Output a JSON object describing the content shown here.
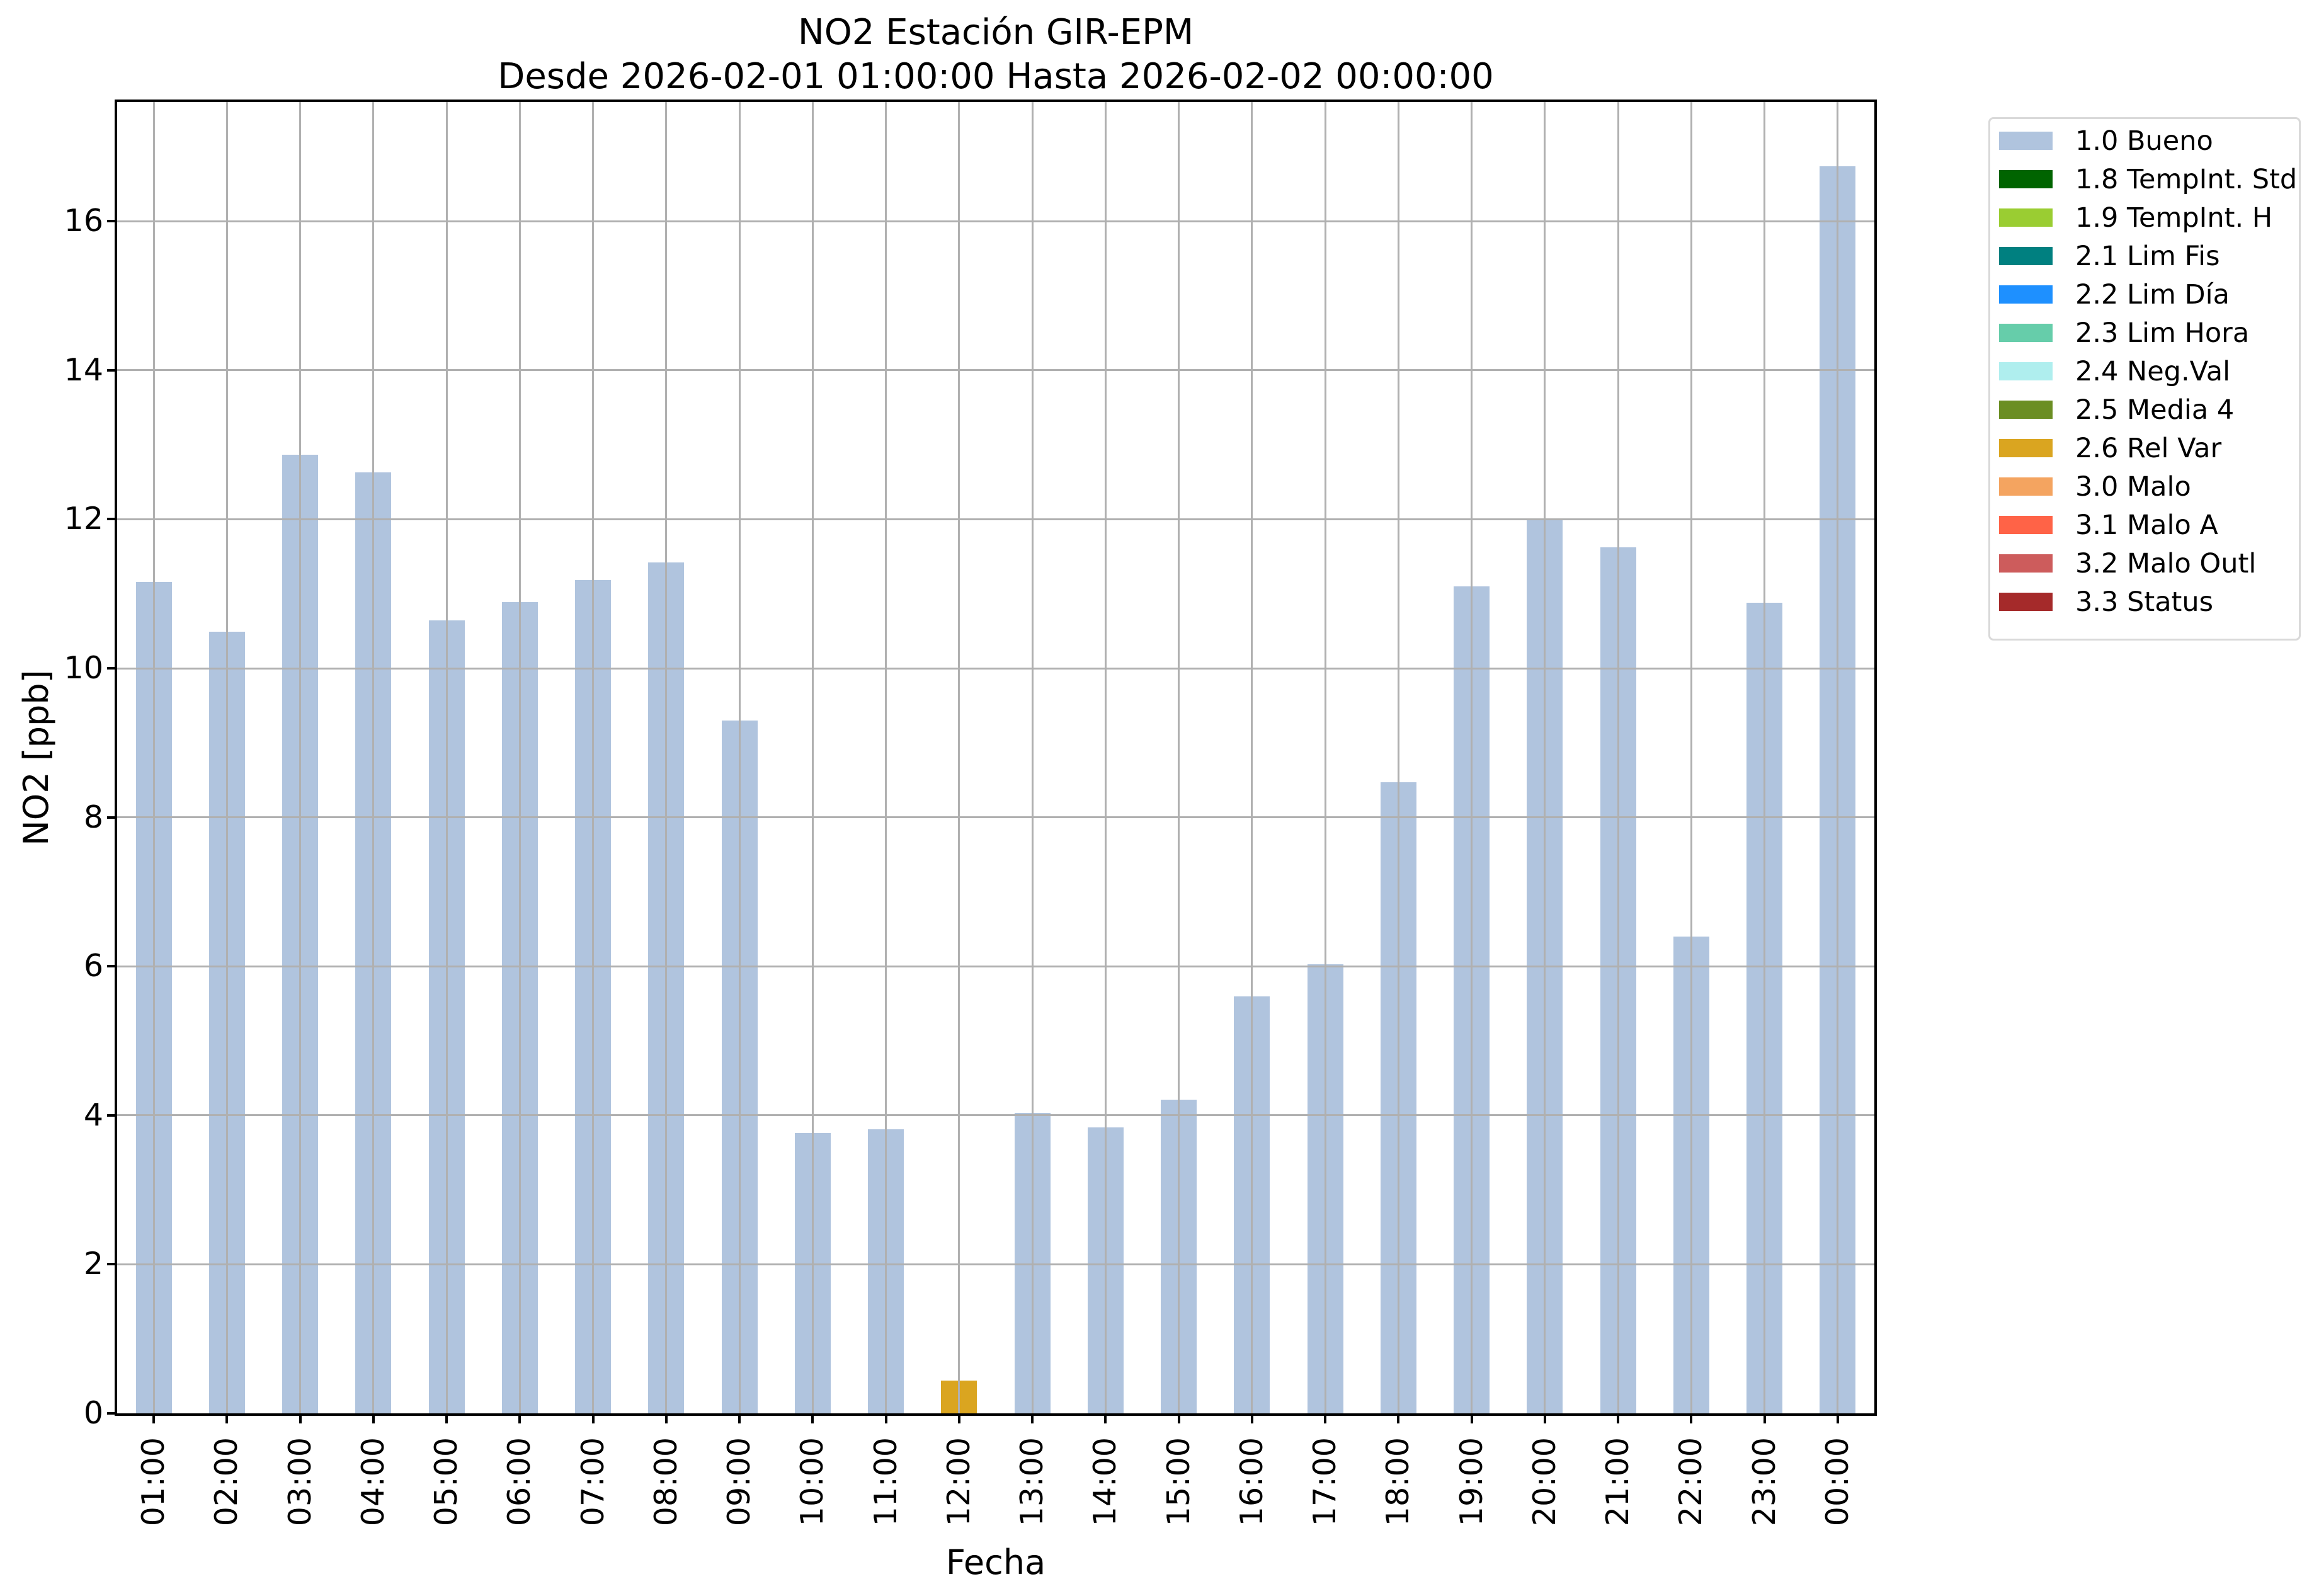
{
  "chart_data": {
    "type": "bar",
    "title": "NO2 Estación GIR-EPM",
    "subtitle": "Desde 2026-02-01 01:00:00 Hasta 2026-02-02 00:00:00",
    "xlabel": "Fecha",
    "ylabel": "NO2 [ppb]",
    "ylim": [
      0,
      17.6
    ],
    "yticks": [
      0,
      2,
      4,
      6,
      8,
      10,
      12,
      14,
      16
    ],
    "grid": true,
    "grid_color": "#b0b0b0",
    "spine_color": "#000000",
    "background_color": "#ffffff",
    "legend_position": "upper right outside plot",
    "categories": [
      "01:00",
      "02:00",
      "03:00",
      "04:00",
      "05:00",
      "06:00",
      "07:00",
      "08:00",
      "09:00",
      "10:00",
      "11:00",
      "12:00",
      "13:00",
      "14:00",
      "15:00",
      "16:00",
      "17:00",
      "18:00",
      "19:00",
      "20:00",
      "21:00",
      "22:00",
      "23:00",
      "00:00"
    ],
    "values": [
      11.16,
      10.49,
      12.87,
      12.63,
      10.64,
      10.89,
      11.18,
      11.42,
      9.3,
      3.76,
      3.81,
      0.44,
      4.03,
      3.84,
      4.21,
      5.6,
      6.03,
      8.47,
      11.1,
      11.99,
      11.62,
      6.4,
      10.88,
      16.74
    ],
    "bar_status": [
      "1.0 Bueno",
      "1.0 Bueno",
      "1.0 Bueno",
      "1.0 Bueno",
      "1.0 Bueno",
      "1.0 Bueno",
      "1.0 Bueno",
      "1.0 Bueno",
      "1.0 Bueno",
      "1.0 Bueno",
      "1.0 Bueno",
      "2.6 Rel Var",
      "1.0 Bueno",
      "1.0 Bueno",
      "1.0 Bueno",
      "1.0 Bueno",
      "1.0 Bueno",
      "1.0 Bueno",
      "1.0 Bueno",
      "1.0 Bueno",
      "1.0 Bueno",
      "1.0 Bueno",
      "1.0 Bueno",
      "1.0 Bueno"
    ],
    "legend": [
      {
        "label": "1.0 Bueno",
        "color": "#b0c4de"
      },
      {
        "label": "1.8 TempInt. Std",
        "color": "#006400"
      },
      {
        "label": "1.9 TempInt. H",
        "color": "#9acd32"
      },
      {
        "label": "2.1 Lim Fis",
        "color": "#008080"
      },
      {
        "label": "2.2 Lim Día",
        "color": "#1e90ff"
      },
      {
        "label": "2.3 Lim Hora",
        "color": "#66cdaa"
      },
      {
        "label": "2.4 Neg.Val",
        "color": "#afeeee"
      },
      {
        "label": "2.5 Media 4",
        "color": "#6b8e23"
      },
      {
        "label": "2.6 Rel Var",
        "color": "#daa520"
      },
      {
        "label": "3.0 Malo",
        "color": "#f4a460"
      },
      {
        "label": "3.1 Malo A",
        "color": "#ff6347"
      },
      {
        "label": "3.2 Malo Outl",
        "color": "#cd5c5c"
      },
      {
        "label": "3.3 Status",
        "color": "#a52a2a"
      }
    ]
  }
}
